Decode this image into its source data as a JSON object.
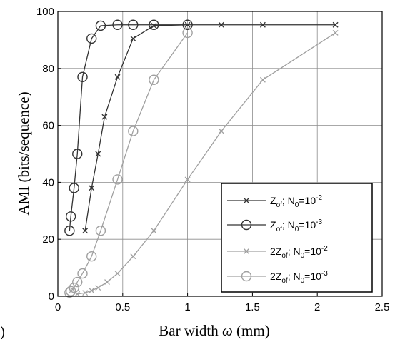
{
  "panel_label": ")",
  "chart_data": {
    "type": "line",
    "title": "",
    "xlabel_main": "Bar width ",
    "xlabel_symbol": "ω",
    "xlabel_unit": " (mm)",
    "ylabel": "AMI (bits/sequence)",
    "xlim": [
      0,
      2.5
    ],
    "ylim": [
      0,
      100
    ],
    "x_ticks": [
      0,
      0.5,
      1,
      1.5,
      2,
      2.5
    ],
    "x_tick_labels": [
      "0",
      "0.5",
      "1",
      "1.5",
      "2",
      "2.5"
    ],
    "y_ticks": [
      0,
      20,
      40,
      60,
      80,
      100
    ],
    "y_tick_labels": [
      "0",
      "20",
      "40",
      "60",
      "80",
      "100"
    ],
    "grid": true,
    "legend_position": "bottom-right",
    "series": [
      {
        "name_parts": [
          "Z",
          "of",
          "; N",
          "0",
          "=10",
          "-2"
        ],
        "color": "#333333",
        "marker": "x",
        "x": [
          0.21,
          0.26,
          0.31,
          0.36,
          0.46,
          0.58,
          0.74,
          1.0,
          1.26,
          1.58,
          2.14
        ],
        "y": [
          23,
          38,
          50,
          63,
          77,
          90.5,
          95,
          95.3,
          95.3,
          95.3,
          95.3
        ]
      },
      {
        "name_parts": [
          "Z",
          "of",
          "; N",
          "0",
          "=10",
          "-3"
        ],
        "color": "#333333",
        "marker": "o",
        "x": [
          0.09,
          0.1,
          0.125,
          0.15,
          0.19,
          0.26,
          0.33,
          0.46,
          0.58,
          0.74,
          1.0
        ],
        "y": [
          23,
          28,
          38,
          50,
          77,
          90.5,
          95,
          95.3,
          95.3,
          95.3,
          95.3
        ]
      },
      {
        "name_parts": [
          "2Z",
          "of",
          "; N",
          "0",
          "=10",
          "-2"
        ],
        "color": "#a0a0a0",
        "marker": "x",
        "x": [
          0.15,
          0.21,
          0.26,
          0.31,
          0.38,
          0.46,
          0.58,
          0.74,
          1.0,
          1.26,
          1.58,
          2.14
        ],
        "y": [
          0.8,
          1.2,
          2.0,
          3.0,
          5.0,
          8.0,
          14,
          23,
          41,
          58,
          76,
          92.5
        ]
      },
      {
        "name_parts": [
          "2Z",
          "of",
          "; N",
          "0",
          "=10",
          "-3"
        ],
        "color": "#a0a0a0",
        "marker": "o",
        "x": [
          0.09,
          0.1,
          0.125,
          0.15,
          0.19,
          0.26,
          0.33,
          0.46,
          0.58,
          0.74,
          1.0
        ],
        "y": [
          1.3,
          1.8,
          3.0,
          5.0,
          8.0,
          14,
          23,
          41,
          58,
          76,
          92.5
        ]
      }
    ]
  }
}
